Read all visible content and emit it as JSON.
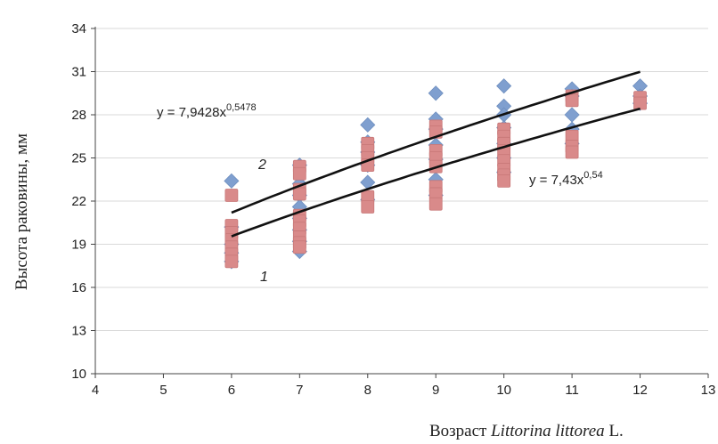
{
  "chart_data": {
    "type": "scatter",
    "title": "",
    "xlabel": "Возраст ",
    "xlabel_italic": "Littorina littorea",
    "xlabel_suffix": " L.",
    "ylabel": "Высота раковины, мм",
    "xlim": [
      4,
      13
    ],
    "ylim": [
      10,
      34
    ],
    "xticks": [
      4,
      5,
      6,
      7,
      8,
      9,
      10,
      11,
      12,
      13
    ],
    "yticks": [
      10,
      13,
      16,
      19,
      22,
      25,
      28,
      31,
      34
    ],
    "grid": "horizontal",
    "colors": {
      "series_diamond": "#7f9fcf",
      "series_square": "#d98a8a",
      "curve": "#111111",
      "grid": "#d9d9d9"
    },
    "series": [
      {
        "marker": "diamond",
        "color": "#7f9fcf",
        "points": [
          [
            6,
            23.4
          ],
          [
            6,
            20.2
          ],
          [
            6,
            19.0
          ],
          [
            6,
            18.4
          ],
          [
            6,
            17.8
          ],
          [
            7,
            24.5
          ],
          [
            7,
            23.2
          ],
          [
            7,
            22.4
          ],
          [
            7,
            21.6
          ],
          [
            7,
            20.8
          ],
          [
            7,
            20.0
          ],
          [
            7,
            19.2
          ],
          [
            7,
            18.5
          ],
          [
            8,
            27.3
          ],
          [
            8,
            26.1
          ],
          [
            8,
            25.4
          ],
          [
            8,
            24.5
          ],
          [
            8,
            23.3
          ],
          [
            8,
            22.1
          ],
          [
            9,
            29.5
          ],
          [
            9,
            27.7
          ],
          [
            9,
            27.0
          ],
          [
            9,
            25.9
          ],
          [
            9,
            24.9
          ],
          [
            9,
            23.5
          ],
          [
            9,
            22.4
          ],
          [
            10,
            30.0
          ],
          [
            10,
            28.6
          ],
          [
            10,
            28.0
          ],
          [
            10,
            27.1
          ],
          [
            10,
            26.0
          ],
          [
            10,
            25.0
          ],
          [
            10,
            24.0
          ],
          [
            11,
            29.8
          ],
          [
            11,
            29.3
          ],
          [
            11,
            28.0
          ],
          [
            11,
            27.0
          ],
          [
            11,
            26.0
          ],
          [
            12,
            30.0
          ],
          [
            12,
            29.3
          ],
          [
            12,
            28.8
          ]
        ]
      },
      {
        "marker": "square",
        "color": "#d98a8a",
        "points": [
          [
            6,
            22.4
          ],
          [
            6,
            20.3
          ],
          [
            6,
            19.8
          ],
          [
            6,
            19.3
          ],
          [
            6,
            18.8
          ],
          [
            6,
            18.3
          ],
          [
            6,
            17.8
          ],
          [
            7,
            24.4
          ],
          [
            7,
            23.9
          ],
          [
            7,
            22.8
          ],
          [
            7,
            22.5
          ],
          [
            7,
            21.0
          ],
          [
            7,
            20.6
          ],
          [
            7,
            20.1
          ],
          [
            7,
            19.5
          ],
          [
            7,
            19.1
          ],
          [
            7,
            18.8
          ],
          [
            8,
            26.0
          ],
          [
            8,
            25.5
          ],
          [
            8,
            25.0
          ],
          [
            8,
            24.5
          ],
          [
            8,
            22.3
          ],
          [
            8,
            21.6
          ],
          [
            9,
            27.2
          ],
          [
            9,
            26.8
          ],
          [
            9,
            25.5
          ],
          [
            9,
            25.0
          ],
          [
            9,
            24.4
          ],
          [
            9,
            23.0
          ],
          [
            9,
            22.5
          ],
          [
            9,
            21.8
          ],
          [
            10,
            27.0
          ],
          [
            10,
            26.5
          ],
          [
            10,
            26.0
          ],
          [
            10,
            25.5
          ],
          [
            10,
            24.8
          ],
          [
            10,
            24.2
          ],
          [
            10,
            23.8
          ],
          [
            10,
            23.4
          ],
          [
            11,
            29.3
          ],
          [
            11,
            29.0
          ],
          [
            11,
            26.5
          ],
          [
            11,
            25.8
          ],
          [
            11,
            25.4
          ],
          [
            12,
            29.2
          ],
          [
            12,
            28.8
          ]
        ]
      }
    ],
    "trendlines": [
      {
        "label": "2",
        "equation": "y = 7,9428x",
        "exponent": "0,5478",
        "a": 7.9428,
        "b": 0.5478,
        "x_range": [
          6,
          12
        ]
      },
      {
        "label": "1",
        "equation": "y = 7,43x",
        "exponent": "0,54",
        "a": 7.43,
        "b": 0.54,
        "x_range": [
          6,
          12
        ]
      }
    ]
  }
}
